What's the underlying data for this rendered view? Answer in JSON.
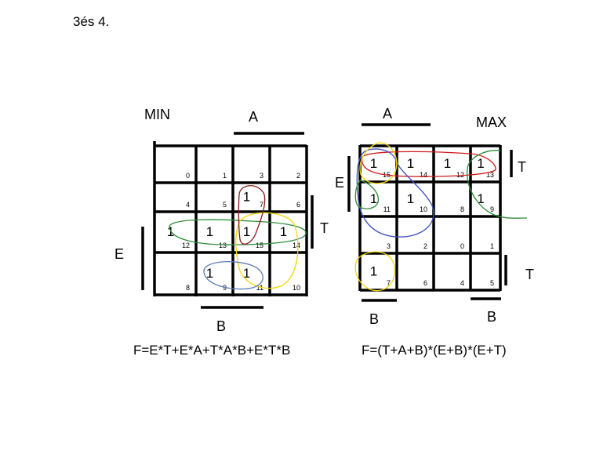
{
  "page_title": "3és 4.",
  "left_map": {
    "label": "MIN",
    "axis_labels": {
      "A": "A",
      "T": "T",
      "E": "E",
      "B": "B"
    },
    "cell_indices": [
      [
        "0",
        "1",
        "3",
        "2"
      ],
      [
        "4",
        "5",
        "7",
        "6"
      ],
      [
        "12",
        "13",
        "15",
        "14"
      ],
      [
        "8",
        "9",
        "11",
        "10"
      ]
    ],
    "ones": [
      {
        "row": 1,
        "col": 2,
        "text": "1"
      },
      {
        "row": 2,
        "col": 0,
        "text": "1"
      },
      {
        "row": 2,
        "col": 1,
        "text": "1"
      },
      {
        "row": 2,
        "col": 2,
        "text": "1"
      },
      {
        "row": 2,
        "col": 3,
        "text": "1"
      },
      {
        "row": 3,
        "col": 1,
        "text": "1"
      },
      {
        "row": 3,
        "col": 2,
        "text": "1"
      }
    ],
    "formula": "F=E*T+E*A+T*A*B+E*T*B",
    "loop_colors": {
      "green": "#2e8b3a",
      "yellow": "#f2d600",
      "dark_red": "#8b1a1a",
      "blue": "#5c7fb8"
    }
  },
  "right_map": {
    "label": "MAX",
    "axis_labels": {
      "A": "A",
      "T_top": "T",
      "E": "E",
      "T_bottom": "T",
      "B_left": "B",
      "B_right": "B"
    },
    "cell_indices": [
      [
        "15",
        "14",
        "12",
        "13"
      ],
      [
        "11",
        "10",
        "8",
        "9"
      ],
      [
        "3",
        "2",
        "0",
        "1"
      ],
      [
        "7",
        "6",
        "4",
        "5"
      ]
    ],
    "ones": [
      {
        "row": 0,
        "col": 0,
        "text": "1"
      },
      {
        "row": 0,
        "col": 1,
        "text": "1"
      },
      {
        "row": 0,
        "col": 2,
        "text": "1"
      },
      {
        "row": 0,
        "col": 3,
        "text": "1"
      },
      {
        "row": 1,
        "col": 0,
        "text": "1"
      },
      {
        "row": 1,
        "col": 1,
        "text": "1"
      },
      {
        "row": 1,
        "col": 3,
        "text": "1"
      },
      {
        "row": 3,
        "col": 0,
        "text": "1"
      }
    ],
    "formula": "F=(T+A+B)*(E+B)*(E+T)",
    "loop_colors": {
      "red": "#d01a1a",
      "blue": "#3d4fbf",
      "green": "#2e8b3a",
      "yellow": "#f2d600"
    }
  }
}
